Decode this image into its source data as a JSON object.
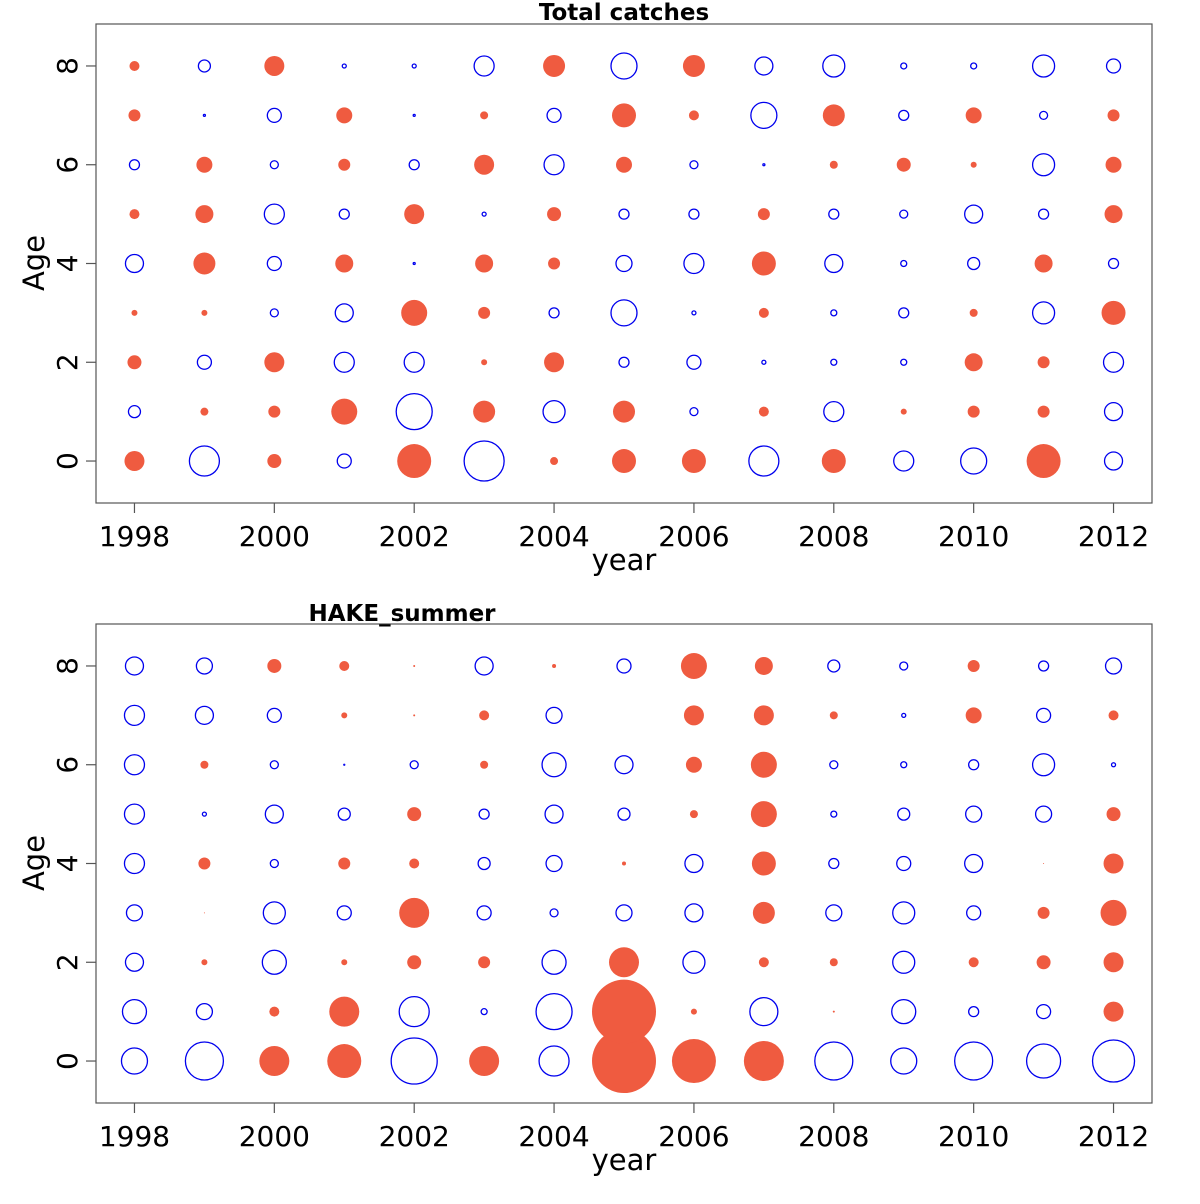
{
  "chart_data": [
    {
      "type": "scatter",
      "subtype": "bubble-residuals",
      "title": "Total catches",
      "xlabel": "year",
      "ylabel": "Age",
      "xlim": [
        1997.45,
        2012.55
      ],
      "ylim": [
        -0.85,
        8.85
      ],
      "x_ticks": [
        1998,
        2000,
        2002,
        2004,
        2006,
        2008,
        2010,
        2012
      ],
      "y_ticks": [
        0,
        2,
        4,
        6,
        8
      ],
      "x_tick_labels": [
        "1998",
        "2000",
        "2002",
        "2004",
        "2006",
        "2008",
        "2010",
        "2012"
      ],
      "y_tick_labels": [
        "0",
        "2",
        "4",
        "6",
        "8"
      ],
      "years": [
        1998,
        1999,
        2000,
        2001,
        2002,
        2003,
        2004,
        2005,
        2006,
        2007,
        2008,
        2009,
        2010,
        2011,
        2012
      ],
      "ages": [
        0,
        1,
        2,
        3,
        4,
        5,
        6,
        7,
        8
      ],
      "values_by_age": [
        [
          10,
          -15,
          7,
          -7,
          17,
          -20,
          4,
          12,
          12,
          -15,
          12,
          -10,
          -13,
          17,
          -9
        ],
        [
          -6,
          4,
          6,
          13,
          -18,
          11,
          -11,
          11,
          -4,
          5,
          -10,
          3,
          6,
          6,
          -9
        ],
        [
          7,
          -7,
          10,
          -10,
          -10,
          3,
          10,
          -5,
          -7,
          -2,
          -3,
          -3,
          9,
          6,
          -10
        ],
        [
          3,
          3,
          -4,
          -9,
          13,
          6,
          -5,
          -13,
          -2,
          5,
          -3,
          -5,
          4,
          -11,
          12
        ],
        [
          -9,
          11,
          -7,
          9,
          -1,
          9,
          6,
          -8,
          -10,
          12,
          -9,
          -3,
          -6,
          9,
          -5
        ],
        [
          5,
          9,
          -10,
          -5,
          10,
          -2,
          7,
          -5,
          -5,
          6,
          -5,
          -4,
          -9,
          -5,
          9
        ],
        [
          -5,
          8,
          -4,
          6,
          -5,
          10,
          -10,
          8,
          -4,
          -1,
          4,
          7,
          3,
          -11,
          8
        ],
        [
          6,
          -1,
          -7,
          8,
          -1,
          4,
          -7,
          12,
          5,
          -13,
          11,
          -5,
          8,
          -4,
          6
        ],
        [
          5,
          -6,
          10,
          -2,
          -2,
          -10,
          11,
          -13,
          11,
          -9,
          -11,
          -3,
          -3,
          -11,
          -7
        ]
      ],
      "colors": {
        "positive": "#ef5b40",
        "negative": "#0000ee"
      }
    },
    {
      "type": "scatter",
      "subtype": "bubble-residuals",
      "title": "HAKE_summer",
      "xlabel": "year",
      "ylabel": "Age",
      "xlim": [
        1997.45,
        2012.55
      ],
      "ylim": [
        -0.85,
        8.85
      ],
      "x_ticks": [
        1998,
        2000,
        2002,
        2004,
        2006,
        2008,
        2010,
        2012
      ],
      "y_ticks": [
        0,
        2,
        4,
        6,
        8
      ],
      "x_tick_labels": [
        "1998",
        "2000",
        "2002",
        "2004",
        "2006",
        "2008",
        "2010",
        "2012"
      ],
      "y_tick_labels": [
        "0",
        "2",
        "4",
        "6",
        "8"
      ],
      "years": [
        1998,
        1999,
        2000,
        2001,
        2002,
        2003,
        2004,
        2005,
        2006,
        2007,
        2008,
        2009,
        2010,
        2011,
        2012
      ],
      "ages": [
        0,
        1,
        2,
        3,
        4,
        5,
        6,
        7,
        8
      ],
      "values_by_age": [
        [
          -13,
          -19,
          15,
          17,
          -23,
          15,
          -15,
          32,
          22,
          20,
          -19,
          -13,
          -19,
          -17,
          -21
        ],
        [
          -12,
          -8,
          5,
          15,
          -15,
          -3,
          -18,
          32,
          3,
          -14,
          1,
          -12,
          -5,
          -7,
          10
        ],
        [
          -9,
          3,
          -12,
          3,
          7,
          6,
          -12,
          15,
          -11,
          5,
          4,
          -11,
          5,
          7,
          10
        ],
        [
          -8,
          0.5,
          -11,
          -7,
          15,
          -7,
          -4,
          -8,
          -9,
          11,
          -8,
          -11,
          -7,
          6,
          13
        ],
        [
          -10,
          6,
          -4,
          6,
          5,
          -6,
          -8,
          2,
          -9,
          12,
          -5,
          -7,
          -9,
          0.5,
          10
        ],
        [
          -10,
          -2,
          -9,
          -6,
          7,
          -5,
          -9,
          -6,
          4,
          13,
          -3,
          -6,
          -8,
          -8,
          7
        ],
        [
          -10,
          4,
          -4,
          -0.5,
          -4,
          4,
          -12,
          -9,
          8,
          13,
          -4,
          -3,
          -5,
          -11,
          -2
        ],
        [
          -10,
          -9,
          -7,
          3,
          1,
          5,
          -8,
          0,
          10,
          10,
          4,
          -2,
          8,
          -7,
          5
        ],
        [
          -9,
          -8,
          7,
          5,
          1,
          -9,
          2,
          -7,
          13,
          9,
          -6,
          -4,
          6,
          -5,
          -8
        ]
      ],
      "colors": {
        "positive": "#ef5b40",
        "negative": "#0000ee"
      }
    }
  ]
}
